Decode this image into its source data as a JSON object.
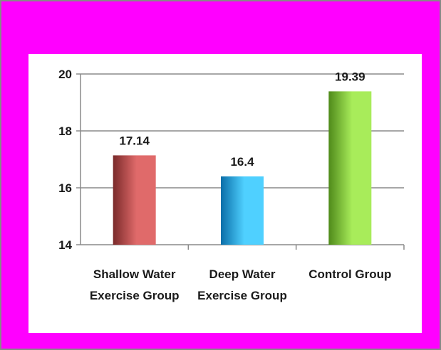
{
  "chart_data": {
    "type": "bar",
    "categories": [
      [
        "Shallow Water",
        "Exercise Group"
      ],
      [
        "Deep Water",
        "Exercise Group"
      ],
      [
        "Control Group"
      ]
    ],
    "values": [
      17.14,
      16.4,
      19.39
    ],
    "data_labels": [
      "17.14",
      "16.4",
      "19.39"
    ],
    "ylim": [
      14,
      20
    ],
    "yticks": [
      14,
      16,
      18,
      20
    ],
    "ytick_labels": [
      "14",
      "16",
      "18",
      "20"
    ],
    "grid": true,
    "legend": "none",
    "bar_colors": [
      {
        "dark": "#7a2a2a",
        "light": "#e06a6a"
      },
      {
        "dark": "#0a6ea8",
        "light": "#4fd0ff"
      },
      {
        "dark": "#4f8a1a",
        "light": "#a8ec5a"
      }
    ],
    "background": "#ff00ff"
  }
}
